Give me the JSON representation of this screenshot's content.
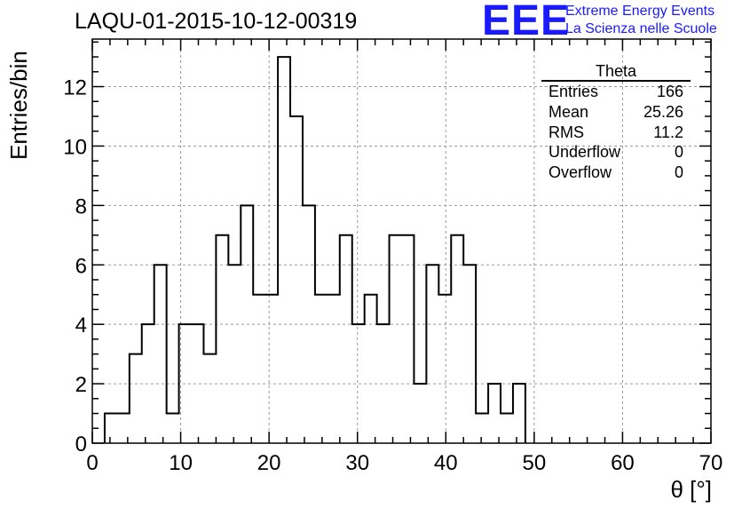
{
  "header": {
    "title": "LAQU-01-2015-10-12-00319",
    "logo_text": "EEE",
    "logo_line1": "Extreme Energy Events",
    "logo_line2": "La Scienza nelle Scuole"
  },
  "stats": {
    "name": "Theta",
    "rows": [
      {
        "label": "Entries",
        "value": "166"
      },
      {
        "label": "Mean",
        "value": "25.26"
      },
      {
        "label": "RMS",
        "value": "11.2"
      },
      {
        "label": "Underflow",
        "value": "0"
      },
      {
        "label": "Overflow",
        "value": "0"
      }
    ]
  },
  "colors": {
    "logo": "#1a1aff",
    "grid": "#9a9a9a",
    "line": "#000000"
  },
  "chart_data": {
    "type": "bar",
    "style": "step-histogram",
    "title": "LAQU-01-2015-10-12-00319",
    "xlabel": "θ [°]",
    "ylabel": "Entries/bin",
    "xlim": [
      0,
      70
    ],
    "ylim": [
      0,
      13.6
    ],
    "x_ticks": [
      0,
      10,
      20,
      30,
      40,
      50,
      60,
      70
    ],
    "y_ticks": [
      0,
      2,
      4,
      6,
      8,
      10,
      12
    ],
    "grid": true,
    "bin_edges": [
      1.4,
      2.8,
      4.2,
      5.6,
      7.0,
      8.4,
      9.8,
      11.2,
      12.6,
      14.0,
      15.4,
      16.8,
      18.2,
      19.6,
      21.0,
      22.4,
      23.8,
      25.2,
      26.6,
      28.0,
      29.4,
      30.8,
      32.2,
      33.6,
      35.0,
      36.4,
      37.8,
      39.2,
      40.6,
      42.0,
      43.4,
      44.8,
      46.2,
      47.6,
      49.0
    ],
    "values": [
      1,
      1,
      3,
      4,
      6,
      1,
      4,
      4,
      3,
      7,
      6,
      8,
      5,
      5,
      13,
      11,
      8,
      5,
      5,
      7,
      4,
      5,
      4,
      7,
      7,
      2,
      6,
      5,
      7,
      6,
      1,
      2,
      1,
      2
    ]
  }
}
